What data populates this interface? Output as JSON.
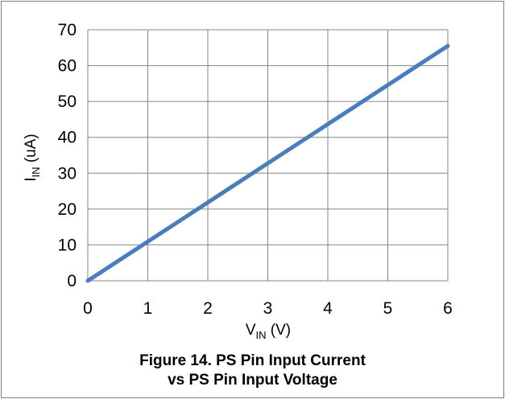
{
  "chart_data": {
    "type": "line",
    "x": [
      0,
      6
    ],
    "series": [
      {
        "values": [
          0,
          65.5
        ],
        "color": "#4a7ebb"
      }
    ],
    "xlim": [
      0,
      6
    ],
    "ylim": [
      0,
      70
    ],
    "x_ticks": [
      "0",
      "1",
      "2",
      "3",
      "4",
      "5",
      "6"
    ],
    "y_ticks": [
      "0",
      "10",
      "20",
      "30",
      "40",
      "50",
      "60",
      "70"
    ],
    "xlabel": {
      "main": "V",
      "sub": "IN",
      "unit": " (V)"
    },
    "ylabel": {
      "main": "I",
      "sub": "IN",
      "unit": " (uA)"
    },
    "grid": true,
    "legend": "none",
    "caption": [
      "Figure 14. PS Pin Input Current",
      "vs PS Pin Input Voltage"
    ]
  }
}
